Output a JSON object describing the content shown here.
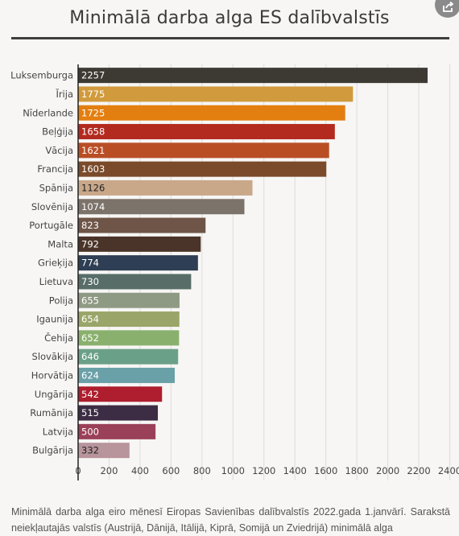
{
  "title": "Minimālā darba alga ES dalībvalstīs",
  "share_icon": "share-icon",
  "chart_data": {
    "type": "bar",
    "orientation": "horizontal",
    "title": "Minimālā darba alga ES dalībvalstīs",
    "categories": [
      "Luksemburga",
      "Īrija",
      "Nīderlande",
      "Beļģija",
      "Vācija",
      "Francija",
      "Spānija",
      "Slovēnija",
      "Portugāle",
      "Malta",
      "Grieķija",
      "Lietuva",
      "Polija",
      "Igaunija",
      "Čehija",
      "Slovākija",
      "Horvātija",
      "Ungārija",
      "Rumānija",
      "Latvija",
      "Bulgārija"
    ],
    "values": [
      2257,
      1775,
      1725,
      1658,
      1621,
      1603,
      1126,
      1074,
      823,
      792,
      774,
      730,
      655,
      654,
      652,
      646,
      624,
      542,
      515,
      500,
      332
    ],
    "value_labels": [
      "2257",
      "1775",
      "1725",
      "1658",
      "1621",
      "1603",
      "1126",
      "1074",
      "823",
      "792",
      "774",
      "730",
      "655",
      "654",
      "652",
      "646",
      "624",
      "542",
      "515",
      "500",
      "332"
    ],
    "colors": [
      "#3d3a33",
      "#d19a3c",
      "#e37f10",
      "#b32a1f",
      "#b94e25",
      "#7a4a2a",
      "#c9a88a",
      "#7c736a",
      "#6e5548",
      "#4a3328",
      "#2e3e54",
      "#586d68",
      "#8f9a84",
      "#9aa569",
      "#8ab06e",
      "#6aa088",
      "#6aa0a8",
      "#ae1e2e",
      "#3c2c44",
      "#9a4058",
      "#b8949c"
    ],
    "xlim": [
      0,
      2500
    ],
    "xticks": [
      "0",
      "200",
      "400",
      "600",
      "800",
      "1000",
      "1200",
      "1400",
      "1600",
      "1800",
      "2000",
      "2200",
      "2400"
    ],
    "grid": true
  },
  "caption": "Minimālā darba alga eiro mēnesī Eiropas Savienības dalībvalstīs 2022.gada 1.janvārī. Sarakstā neiekļautajās valstīs (Austrijā, Dānijā, Itālijā, Kiprā, Somijā un Zviedrijā) minimālā alga"
}
